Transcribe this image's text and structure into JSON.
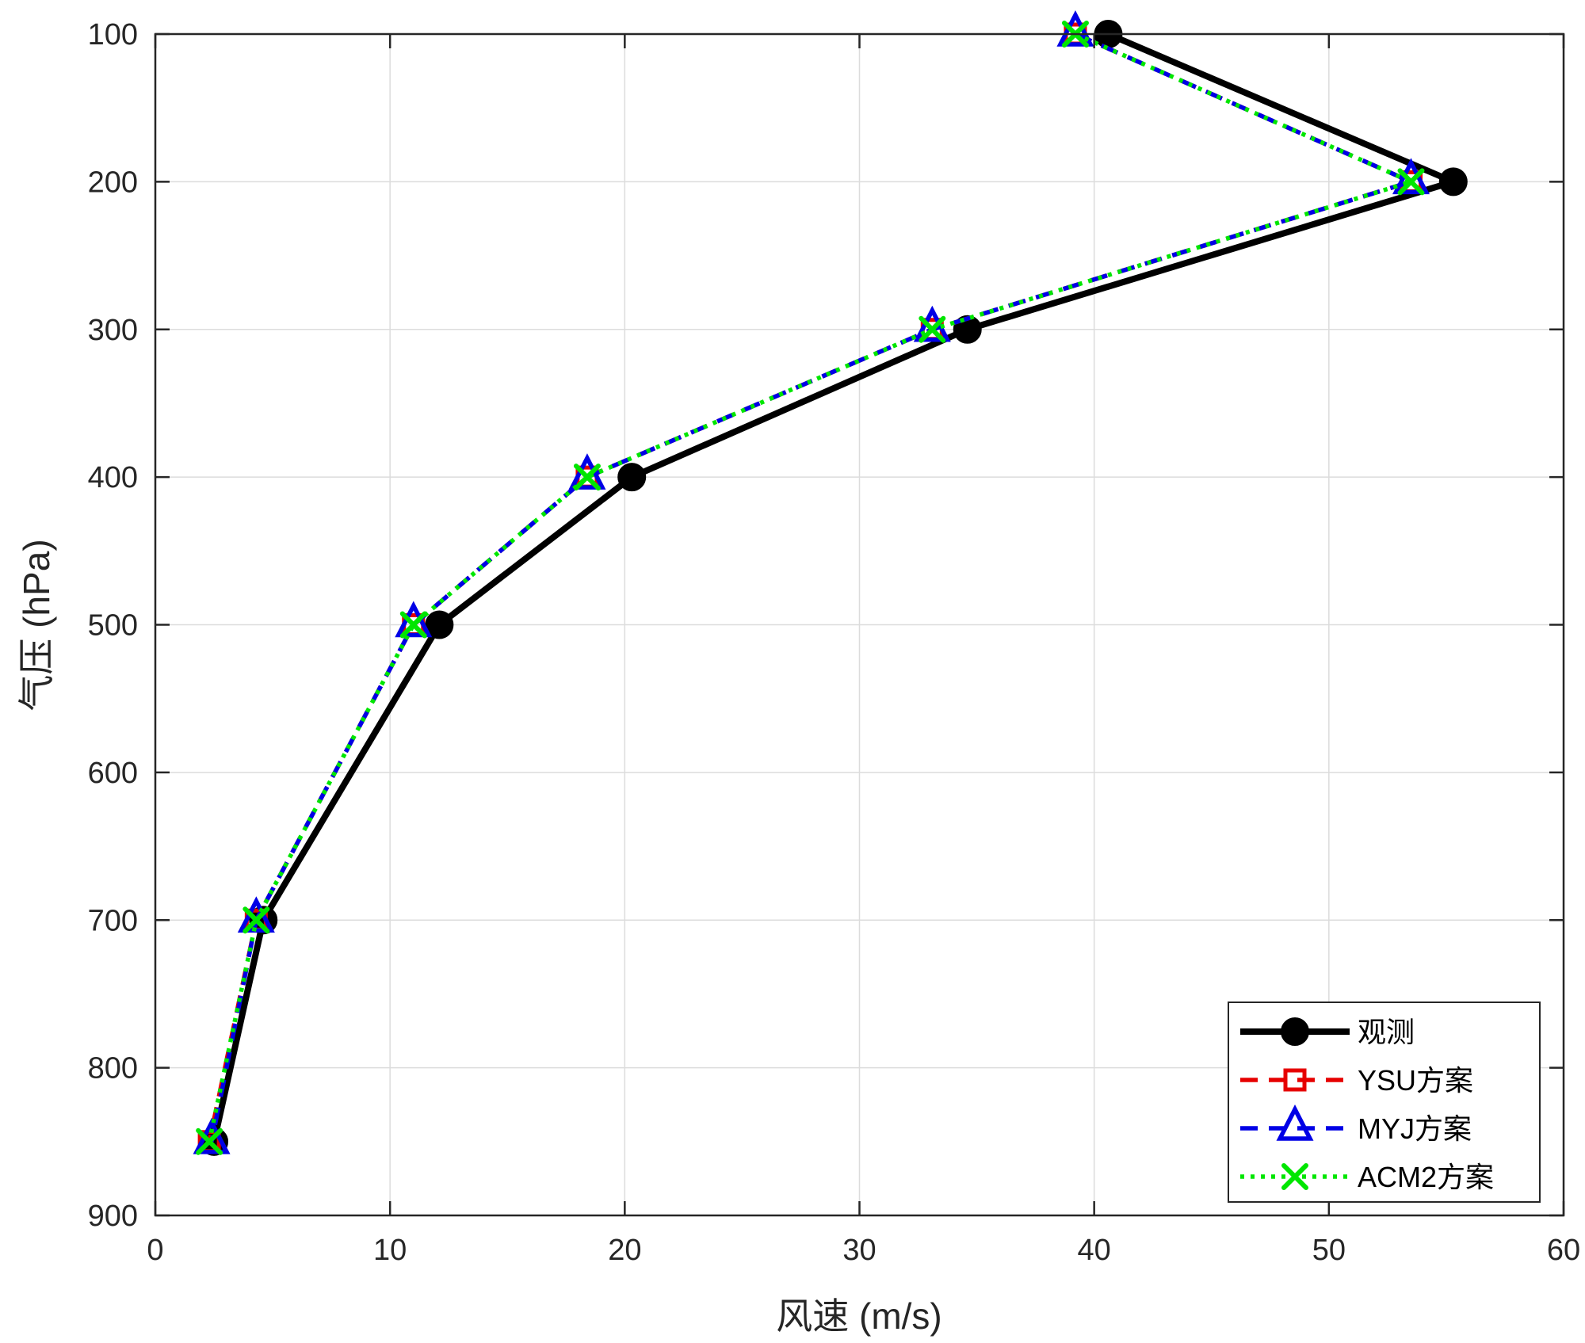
{
  "chart_data": {
    "type": "line",
    "title": "",
    "xlabel": "风速 (m/s)",
    "ylabel": "气压 (hPa)",
    "xlim": [
      0,
      60
    ],
    "ylim": [
      100,
      900
    ],
    "y_reversed": true,
    "xticks": [
      "0",
      "10",
      "20",
      "30",
      "40",
      "50",
      "60"
    ],
    "yticks": [
      "100",
      "200",
      "300",
      "400",
      "500",
      "600",
      "700",
      "800",
      "900"
    ],
    "grid": true,
    "legend_position": "bottom-right",
    "y": [
      100,
      200,
      300,
      400,
      500,
      700,
      850
    ],
    "series": [
      {
        "name": "观测",
        "color": "#000000",
        "line_style": "solid",
        "marker": "circle",
        "x": [
          40.6,
          55.3,
          34.6,
          20.3,
          12.1,
          4.6,
          2.5
        ]
      },
      {
        "name": "YSU方案",
        "color": "#e60000",
        "line_style": "dashed",
        "marker": "square",
        "x": [
          39.2,
          53.5,
          33.1,
          18.4,
          11.0,
          4.3,
          2.3
        ]
      },
      {
        "name": "MYJ方案",
        "color": "#0000e6",
        "line_style": "dashed",
        "marker": "triangle",
        "x": [
          39.2,
          53.5,
          33.1,
          18.4,
          11.0,
          4.3,
          2.4
        ]
      },
      {
        "name": "ACM2方案",
        "color": "#00e600",
        "line_style": "dotted",
        "marker": "x",
        "x": [
          39.2,
          53.5,
          33.1,
          18.4,
          11.0,
          4.3,
          2.3
        ]
      }
    ]
  }
}
